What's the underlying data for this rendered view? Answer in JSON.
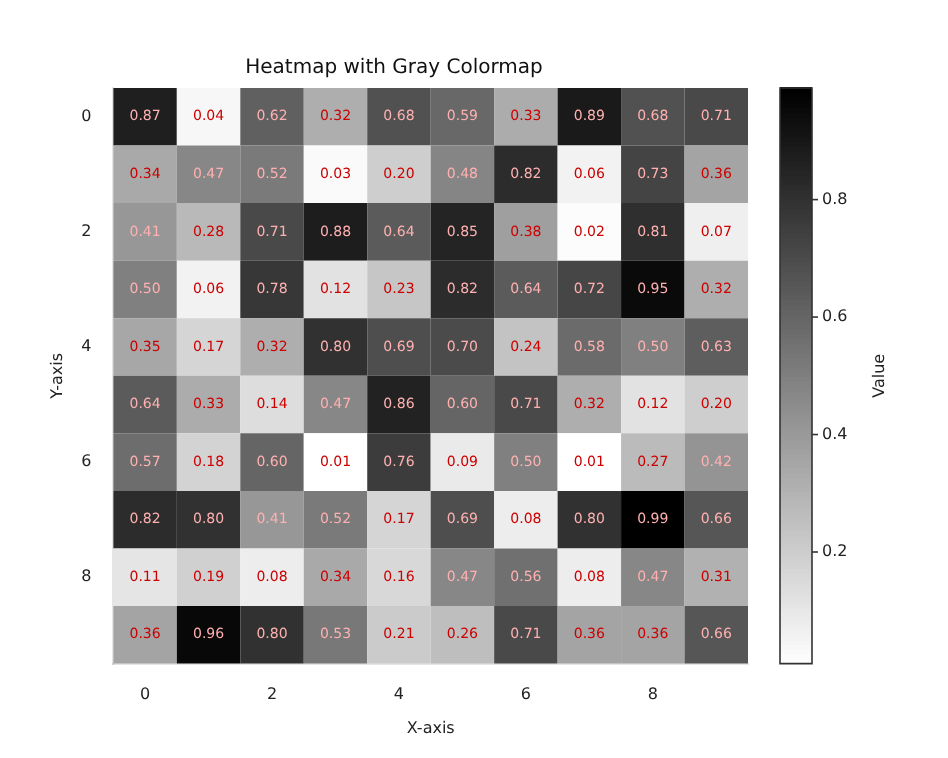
{
  "chart_data": {
    "type": "heatmap",
    "title": "Heatmap with Gray Colormap",
    "xlabel": "X-axis",
    "ylabel": "Y-axis",
    "clabel": "Value",
    "categories": [
      "0",
      null,
      "2",
      null,
      "4",
      null,
      "6",
      null,
      "8",
      null
    ],
    "y_categories": [
      "0",
      null,
      "2",
      null,
      "4",
      null,
      "6",
      null,
      "8",
      null
    ],
    "cells": [
      [
        0.87,
        0.04,
        0.62,
        0.32,
        0.68,
        0.59,
        0.33,
        0.89,
        0.68,
        0.71
      ],
      [
        0.34,
        0.47,
        0.52,
        0.03,
        0.2,
        0.48,
        0.82,
        0.06,
        0.73,
        0.36
      ],
      [
        0.41,
        0.28,
        0.71,
        0.88,
        0.64,
        0.85,
        0.38,
        0.02,
        0.81,
        0.07
      ],
      [
        0.5,
        0.06,
        0.78,
        0.12,
        0.23,
        0.82,
        0.64,
        0.72,
        0.95,
        0.32
      ],
      [
        0.35,
        0.17,
        0.32,
        0.8,
        0.69,
        0.7,
        0.24,
        0.58,
        0.5,
        0.63
      ],
      [
        0.64,
        0.33,
        0.14,
        0.47,
        0.86,
        0.6,
        0.71,
        0.32,
        0.12,
        0.2
      ],
      [
        0.57,
        0.18,
        0.6,
        0.01,
        0.76,
        0.09,
        0.5,
        0.01,
        0.27,
        0.42
      ],
      [
        0.82,
        0.8,
        0.41,
        0.52,
        0.17,
        0.69,
        0.08,
        0.8,
        0.99,
        0.66
      ],
      [
        0.11,
        0.19,
        0.08,
        0.34,
        0.16,
        0.47,
        0.56,
        0.08,
        0.47,
        0.31
      ],
      [
        0.36,
        0.96,
        0.8,
        0.53,
        0.21,
        0.26,
        0.71,
        0.36,
        0.36,
        0.66
      ]
    ],
    "cell_labels": [
      [
        "0.87",
        "0.04",
        "0.62",
        "0.32",
        "0.68",
        "0.59",
        "0.33",
        "0.89",
        "0.68",
        "0.71"
      ],
      [
        "0.34",
        "0.47",
        "0.52",
        "0.03",
        "0.20",
        "0.48",
        "0.82",
        "0.06",
        "0.73",
        "0.36"
      ],
      [
        "0.41",
        "0.28",
        "0.71",
        "0.88",
        "0.64",
        "0.85",
        "0.38",
        "0.02",
        "0.81",
        "0.07"
      ],
      [
        "0.50",
        "0.06",
        "0.78",
        "0.12",
        "0.23",
        "0.82",
        "0.64",
        "0.72",
        "0.95",
        "0.32"
      ],
      [
        "0.35",
        "0.17",
        "0.32",
        "0.80",
        "0.69",
        "0.70",
        "0.24",
        "0.58",
        "0.50",
        "0.63"
      ],
      [
        "0.64",
        "0.33",
        "0.14",
        "0.47",
        "0.86",
        "0.60",
        "0.71",
        "0.32",
        "0.12",
        "0.20"
      ],
      [
        "0.57",
        "0.18",
        "0.60",
        "0.01",
        "0.76",
        "0.09",
        "0.50",
        "0.01",
        "0.27",
        "0.42"
      ],
      [
        "0.82",
        "0.80",
        "0.41",
        "0.52",
        "0.17",
        "0.69",
        "0.08",
        "0.80",
        "0.99",
        "0.66"
      ],
      [
        "0.11",
        "0.19",
        "0.08",
        "0.34",
        "0.16",
        "0.47",
        "0.56",
        "0.08",
        "0.47",
        "0.31"
      ],
      [
        "0.36",
        "0.96",
        "0.80",
        "0.53",
        "0.21",
        "0.26",
        "0.71",
        "0.36",
        "0.36",
        "0.66"
      ]
    ],
    "clim": [
      0.01,
      0.99
    ],
    "cticks": [
      0.2,
      0.4,
      0.6,
      0.8
    ]
  }
}
